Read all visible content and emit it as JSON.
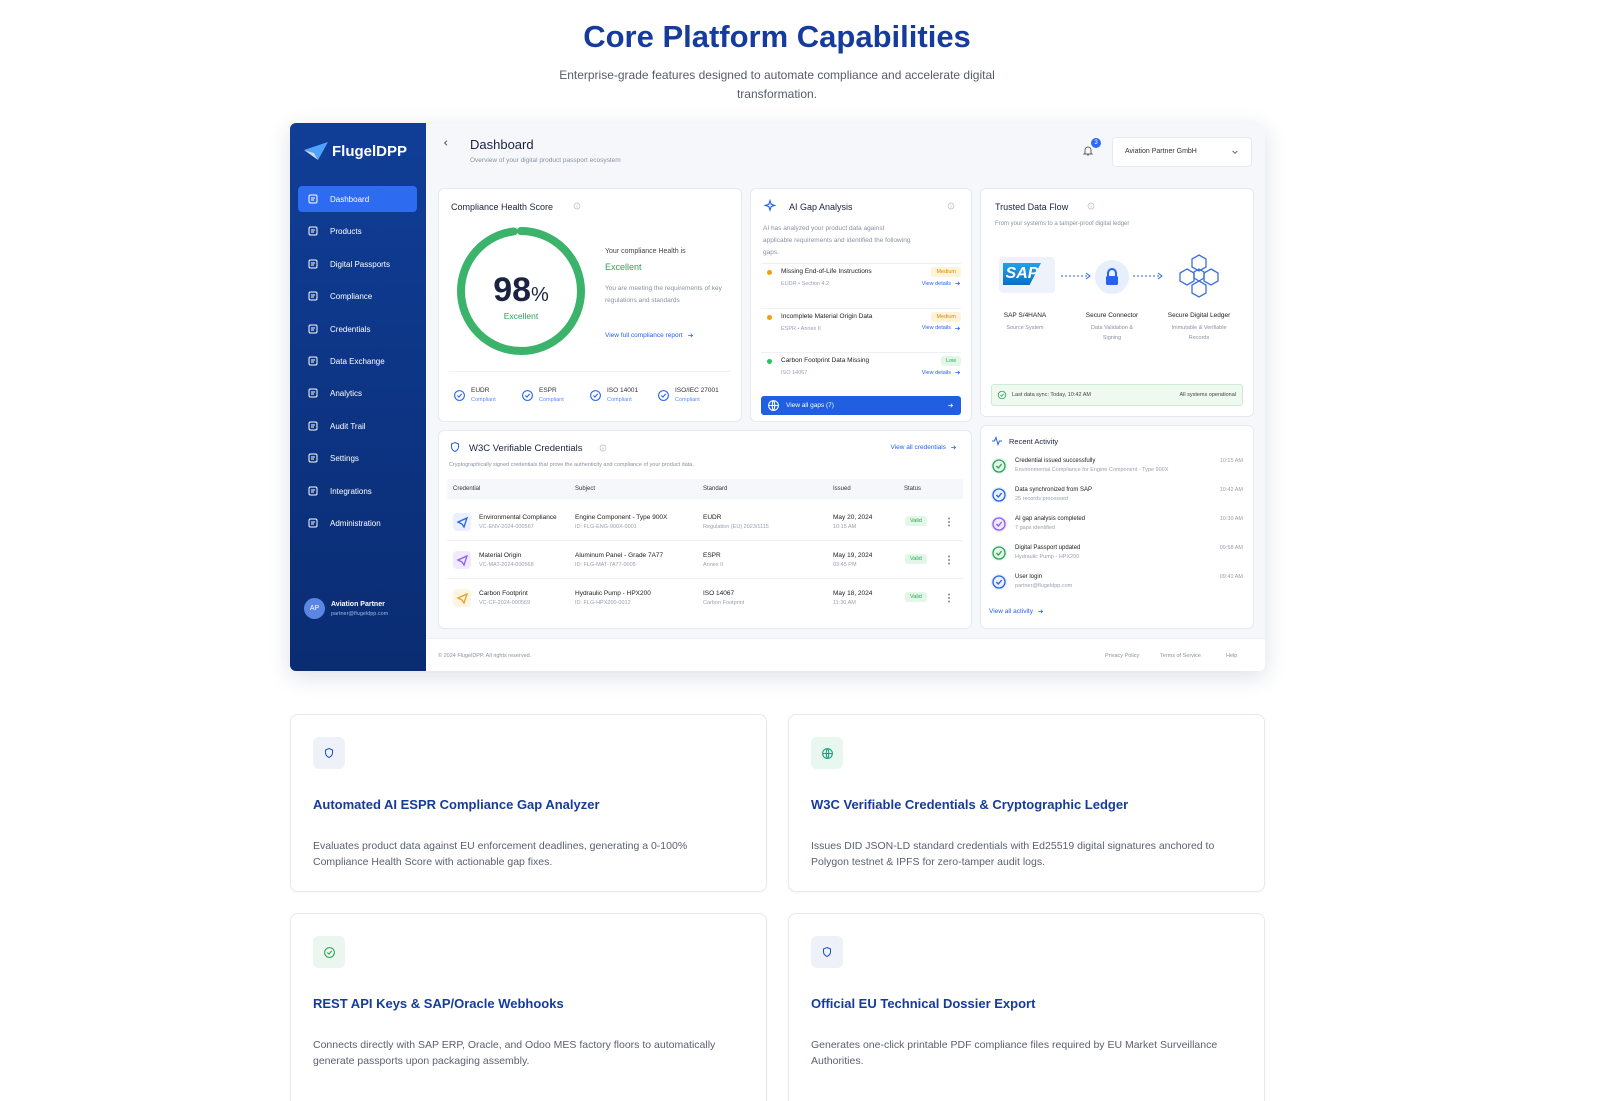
{
  "header": {
    "title": "Core Platform Capabilities",
    "subtitle": "Enterprise-grade features designed to automate compliance and accelerate digital transformation."
  },
  "dashboard": {
    "brand": "FlugelDPP",
    "nav": [
      "Dashboard",
      "Products",
      "Digital Passports",
      "Compliance",
      "Credentials",
      "Data Exchange",
      "Analytics",
      "Audit Trail",
      "Settings",
      "Integrations",
      "Administration"
    ],
    "user": {
      "initials": "AP",
      "name": "Aviation Partner",
      "email": "partner@flugeldpp.com"
    },
    "page_title": "Dashboard",
    "page_subtitle": "Overview of your digital product passport ecosystem",
    "notification_count": "3",
    "org": "Aviation Partner GmbH",
    "health": {
      "title": "Compliance Health Score",
      "score": "98",
      "unit": "%",
      "rating": "Excellent",
      "summary_label": "Your compliance Health is",
      "summary_value": "Excellent",
      "description": "You are meeting the requirements of key regulations and standards",
      "link": "View full compliance report",
      "standards": [
        {
          "name": "EUDR",
          "status": "Compliant"
        },
        {
          "name": "ESPR",
          "status": "Compliant"
        },
        {
          "name": "ISO 14001",
          "status": "Compliant"
        },
        {
          "name": "ISO/IEC 27001",
          "status": "Compliant"
        }
      ]
    },
    "gap": {
      "title": "AI Gap Analysis",
      "description": "AI has analyzed your product data against applicable requirements and identified the following gaps.",
      "items": [
        {
          "title": "Missing End-of-Life Instructions",
          "ref": "EUDR • Section 4.2",
          "severity": "Medium",
          "link": "View details"
        },
        {
          "title": "Incomplete Material Origin Data",
          "ref": "ESPR • Annex II",
          "severity": "Medium",
          "link": "View details"
        },
        {
          "title": "Carbon Footprint Data Missing",
          "ref": "ISO 14067",
          "severity": "Low",
          "link": "View details"
        }
      ],
      "button": "View all gaps (7)"
    },
    "flow": {
      "title": "Trusted Data Flow",
      "subtitle": "From your systems to a tamper-proof digital ledger",
      "sap_logo": "SAP",
      "nodes": [
        {
          "name": "SAP S/4HANA",
          "desc": "Source System"
        },
        {
          "name": "Secure Connector",
          "desc": "Data Validation & Signing"
        },
        {
          "name": "Secure Digital Ledger",
          "desc": "Immutable & Verifiable Records"
        }
      ],
      "sync": "Last data sync: Today, 10:42 AM",
      "status": "All systems operational"
    },
    "credentials": {
      "title": "W3C Verifiable Credentials",
      "link": "View all credentials",
      "description": "Cryptographically signed credentials that prove the authenticity and compliance of your product data.",
      "columns": [
        "Credential",
        "Subject",
        "Standard",
        "Issued",
        "Status"
      ],
      "rows": [
        {
          "name": "Environmental Compliance",
          "id": "VC-ENV-2024-000567",
          "subject": "Engine Component - Type 900X",
          "subject_id": "ID: FLG-ENG-900X-0001",
          "standard": "EUDR",
          "standard_ref": "Regulation (EU) 2023/1115",
          "date": "May 20, 2024",
          "time": "10:15 AM",
          "status": "Valid"
        },
        {
          "name": "Material Origin",
          "id": "VC-MAT-2024-000568",
          "subject": "Aluminum Panel - Grade 7A77",
          "subject_id": "ID: FLG-MAT-7A77-0005",
          "standard": "ESPR",
          "standard_ref": "Annex II",
          "date": "May 19, 2024",
          "time": "03:45 PM",
          "status": "Valid"
        },
        {
          "name": "Carbon Footprint",
          "id": "VC-CF-2024-000569",
          "subject": "Hydraulic Pump - HPX200",
          "subject_id": "ID: FLG-HPX200-0012",
          "standard": "ISO 14067",
          "standard_ref": "Carbon Footprint",
          "date": "May 18, 2024",
          "time": "11:30 AM",
          "status": "Valid"
        }
      ]
    },
    "activity": {
      "title": "Recent Activity",
      "link": "View all activity",
      "items": [
        {
          "title": "Credential issued successfully",
          "detail": "Environmental Compliance for Engine Component - Type 900X",
          "time": "10:15 AM"
        },
        {
          "title": "Data synchronized from SAP",
          "detail": "25 records processed",
          "time": "10:42 AM"
        },
        {
          "title": "AI gap analysis completed",
          "detail": "7 gaps identified",
          "time": "10:30 AM"
        },
        {
          "title": "Digital Passport updated",
          "detail": "Hydraulic Pump - HPX200",
          "time": "09:58 AM"
        },
        {
          "title": "User login",
          "detail": "partner@flugeldpp.com",
          "time": "09:41 AM"
        }
      ]
    },
    "footer": {
      "copyright": "© 2024 FlugelDPP. All rights reserved.",
      "links": [
        "Privacy Policy",
        "Terms of Service",
        "Help"
      ]
    }
  },
  "features": [
    {
      "title": "Automated AI ESPR Compliance Gap Analyzer",
      "description": "Evaluates product data against EU enforcement deadlines, generating a 0-100% Compliance Health Score with actionable gap fixes."
    },
    {
      "title": "W3C Verifiable Credentials & Cryptographic Ledger",
      "description": "Issues DID JSON-LD standard credentials with Ed25519 digital signatures anchored to Polygon testnet & IPFS for zero-tamper audit logs."
    },
    {
      "title": "REST API Keys & SAP/Oracle Webhooks",
      "description": "Connects directly with SAP ERP, Oracle, and Odoo MES factory floors to automatically generate passports upon packaging assembly."
    },
    {
      "title": "Official EU Technical Dossier Export",
      "description": "Generates one-click printable PDF compliance files required by EU Market Surveillance Authorities."
    }
  ]
}
